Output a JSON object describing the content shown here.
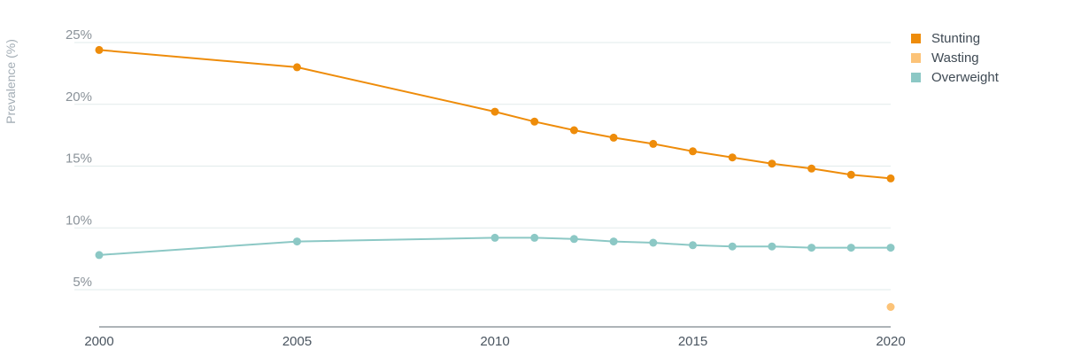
{
  "chart_data": {
    "type": "line",
    "title": "",
    "xlabel": "",
    "ylabel": "Prevalence (%)",
    "xlim": [
      2000,
      2020
    ],
    "ylim": [
      2,
      25
    ],
    "x_ticks": [
      2000,
      2005,
      2010,
      2015,
      2020
    ],
    "x_tick_labels": [
      "2000",
      "2005",
      "2010",
      "2015",
      "2020"
    ],
    "y_ticks": [
      5,
      10,
      15,
      20,
      25
    ],
    "y_tick_labels": [
      "5%",
      "10%",
      "15%",
      "20%",
      "25%"
    ],
    "grid": true,
    "legend_position": "top-right",
    "series": [
      {
        "name": "Stunting",
        "color": "#ee8c0a",
        "points": [
          {
            "x": 2000,
            "y": 24.4
          },
          {
            "x": 2005,
            "y": 23.0
          },
          {
            "x": 2010,
            "y": 19.4
          },
          {
            "x": 2011,
            "y": 18.6
          },
          {
            "x": 2012,
            "y": 17.9
          },
          {
            "x": 2013,
            "y": 17.3
          },
          {
            "x": 2014,
            "y": 16.8
          },
          {
            "x": 2015,
            "y": 16.2
          },
          {
            "x": 2016,
            "y": 15.7
          },
          {
            "x": 2017,
            "y": 15.2
          },
          {
            "x": 2018,
            "y": 14.8
          },
          {
            "x": 2019,
            "y": 14.3
          },
          {
            "x": 2020,
            "y": 14.0
          }
        ]
      },
      {
        "name": "Wasting",
        "color": "#fcc378",
        "points": [
          {
            "x": 2020,
            "y": 3.6
          }
        ]
      },
      {
        "name": "Overweight",
        "color": "#8cc8c5",
        "points": [
          {
            "x": 2000,
            "y": 7.8
          },
          {
            "x": 2005,
            "y": 8.9
          },
          {
            "x": 2010,
            "y": 9.2
          },
          {
            "x": 2011,
            "y": 9.2
          },
          {
            "x": 2012,
            "y": 9.1
          },
          {
            "x": 2013,
            "y": 8.9
          },
          {
            "x": 2014,
            "y": 8.8
          },
          {
            "x": 2015,
            "y": 8.6
          },
          {
            "x": 2016,
            "y": 8.5
          },
          {
            "x": 2017,
            "y": 8.5
          },
          {
            "x": 2018,
            "y": 8.4
          },
          {
            "x": 2019,
            "y": 8.4
          },
          {
            "x": 2020,
            "y": 8.4
          }
        ]
      }
    ]
  }
}
